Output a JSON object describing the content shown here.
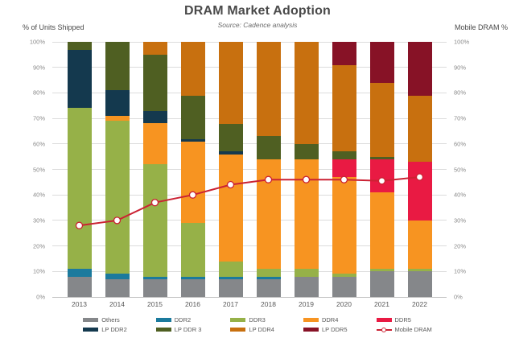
{
  "title": "DRAM Market Adoption",
  "subtitle": "Source: Cadence analysis",
  "left_axis_label": "% of Units Shipped",
  "right_axis_label": "Mobile DRAM %",
  "chart_data": {
    "type": "bar",
    "variant": "stacked-bar-with-line",
    "title": "DRAM Market Adoption",
    "subtitle": "Source: Cadence analysis",
    "xlabel": "",
    "ylabel_left": "% of Units Shipped",
    "ylabel_right": "Mobile DRAM %",
    "ylim": [
      0,
      100
    ],
    "grid": true,
    "legend_position": "bottom",
    "categories": [
      "2013",
      "2014",
      "2015",
      "2016",
      "2017",
      "2018",
      "2019",
      "2020",
      "2021",
      "2022"
    ],
    "yticks": [
      "0%",
      "10%",
      "20%",
      "30%",
      "40%",
      "50%",
      "60%",
      "70%",
      "80%",
      "90%",
      "100%"
    ],
    "series": [
      {
        "name": "Others",
        "color": "#85878a",
        "values": [
          8,
          7,
          7,
          7,
          7,
          7,
          8,
          8,
          10,
          10
        ]
      },
      {
        "name": "DDR2",
        "color": "#1b7a9d",
        "values": [
          3,
          2,
          1,
          1,
          1,
          1,
          0,
          0,
          0,
          0
        ]
      },
      {
        "name": "DDR3",
        "color": "#96b148",
        "values": [
          63,
          60,
          44,
          21,
          6,
          3,
          3,
          1,
          1,
          1
        ]
      },
      {
        "name": "DDR4",
        "color": "#f79421",
        "values": [
          0,
          2,
          16,
          32,
          42,
          43,
          43,
          38,
          30,
          19
        ]
      },
      {
        "name": "DDR5",
        "color": "#e91a43",
        "values": [
          0,
          0,
          0,
          0,
          0,
          0,
          0,
          7,
          13,
          23
        ]
      },
      {
        "name": "LP DDR2",
        "color": "#14394e",
        "values": [
          23,
          10,
          5,
          1,
          1,
          0,
          0,
          0,
          0,
          0
        ]
      },
      {
        "name": "LP DDR 3",
        "color": "#4f5f22",
        "values": [
          3,
          19,
          22,
          17,
          11,
          9,
          6,
          3,
          1,
          0
        ]
      },
      {
        "name": "LP DDR4",
        "color": "#c8700f",
        "values": [
          0,
          0,
          5,
          21,
          32,
          37,
          40,
          34,
          29,
          26
        ]
      },
      {
        "name": "LP DDR5",
        "color": "#871226",
        "values": [
          0,
          0,
          0,
          0,
          0,
          0,
          0,
          9,
          16,
          21
        ]
      }
    ],
    "line_series": {
      "name": "Mobile DRAM",
      "color": "#cb2233",
      "marker": "circle-white",
      "values": [
        28,
        30,
        37,
        40,
        44,
        46,
        46,
        46,
        45.5,
        47
      ]
    }
  },
  "legend": {
    "items": [
      {
        "label": "Others",
        "color": "#85878a",
        "type": "swatch"
      },
      {
        "label": "LP DDR2",
        "color": "#14394e",
        "type": "swatch"
      },
      {
        "label": "DDR2",
        "color": "#1b7a9d",
        "type": "swatch"
      },
      {
        "label": "LP DDR 3",
        "color": "#4f5f22",
        "type": "swatch"
      },
      {
        "label": "DDR3",
        "color": "#96b148",
        "type": "swatch"
      },
      {
        "label": "LP DDR4",
        "color": "#c8700f",
        "type": "swatch"
      },
      {
        "label": "DDR4",
        "color": "#f79421",
        "type": "swatch"
      },
      {
        "label": "LP DDR5",
        "color": "#871226",
        "type": "swatch"
      },
      {
        "label": "DDR5",
        "color": "#e91a43",
        "type": "swatch"
      },
      {
        "label": "Mobile DRAM",
        "color": "#cb2233",
        "type": "line"
      }
    ]
  }
}
